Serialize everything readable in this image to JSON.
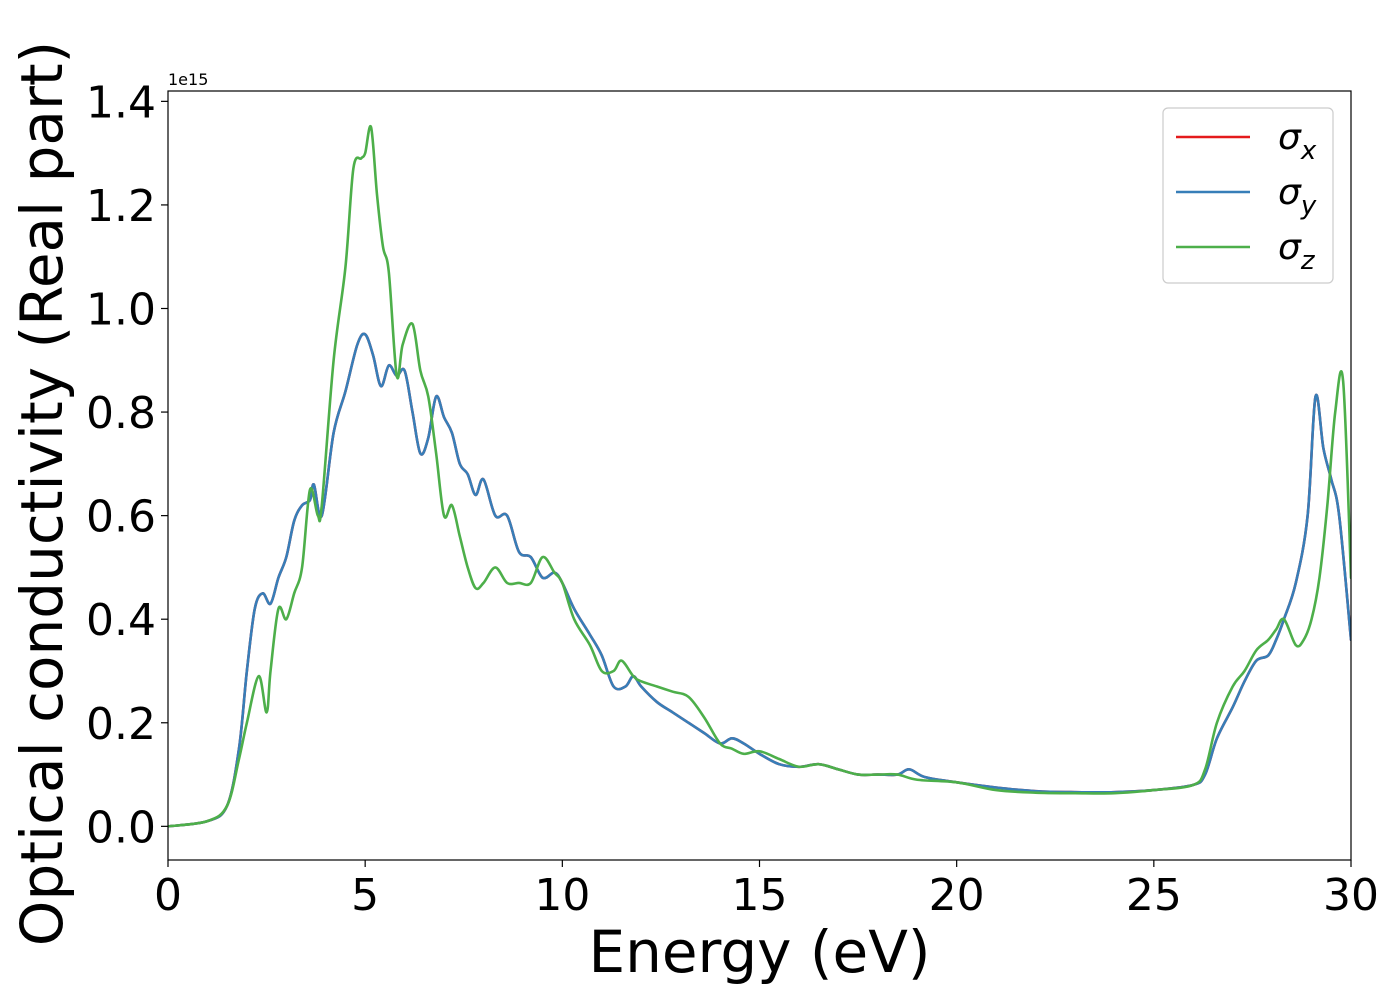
{
  "chart_data": {
    "type": "line",
    "xlabel": "Energy (eV)",
    "ylabel": "Optical conductivity (Real part)",
    "y_offset_text": "1e15",
    "xlim": [
      0,
      30
    ],
    "ylim": [
      -0.065,
      1.42
    ],
    "x_ticks": [
      0,
      5,
      10,
      15,
      20,
      25,
      30
    ],
    "x_tick_labels": [
      "0",
      "5",
      "10",
      "15",
      "20",
      "25",
      "30"
    ],
    "y_ticks": [
      0.0,
      0.2,
      0.4,
      0.6,
      0.8,
      1.0,
      1.2,
      1.4
    ],
    "y_tick_labels": [
      "0.0",
      "0.2",
      "0.4",
      "0.6",
      "0.8",
      "1.0",
      "1.2",
      "1.4"
    ],
    "grid": false,
    "legend_position": "top-right",
    "series": [
      {
        "name": "σx",
        "base": "σ",
        "sub": "x",
        "color": "#e41a1c",
        "x": [
          0,
          1,
          1.5,
          1.8,
          2.0,
          2.2,
          2.4,
          2.6,
          2.8,
          3.0,
          3.2,
          3.4,
          3.6,
          3.7,
          3.9,
          4.2,
          4.5,
          4.8,
          5.0,
          5.2,
          5.4,
          5.6,
          5.8,
          6.0,
          6.2,
          6.4,
          6.6,
          6.8,
          7.0,
          7.2,
          7.4,
          7.6,
          7.8,
          8.0,
          8.3,
          8.6,
          8.9,
          9.2,
          9.5,
          9.8,
          10.0,
          10.3,
          10.7,
          11.0,
          11.3,
          11.6,
          11.8,
          12.0,
          12.4,
          12.8,
          13.2,
          13.6,
          14.0,
          14.3,
          14.6,
          15.0,
          15.5,
          16.0,
          16.5,
          17.0,
          17.5,
          18.0,
          18.5,
          18.8,
          19.2,
          20.0,
          21.0,
          22.0,
          23.0,
          24.0,
          25.0,
          26.0,
          26.3,
          26.6,
          27.0,
          27.3,
          27.6,
          27.9,
          28.1,
          28.3,
          28.6,
          28.9,
          29.1,
          29.3,
          29.5,
          29.7,
          30.0
        ],
        "y": [
          0,
          0.01,
          0.04,
          0.15,
          0.3,
          0.42,
          0.45,
          0.43,
          0.48,
          0.52,
          0.59,
          0.62,
          0.63,
          0.66,
          0.6,
          0.76,
          0.84,
          0.93,
          0.95,
          0.91,
          0.85,
          0.89,
          0.87,
          0.88,
          0.8,
          0.72,
          0.75,
          0.83,
          0.79,
          0.76,
          0.7,
          0.68,
          0.64,
          0.67,
          0.6,
          0.6,
          0.53,
          0.52,
          0.48,
          0.49,
          0.47,
          0.42,
          0.37,
          0.33,
          0.27,
          0.27,
          0.29,
          0.27,
          0.24,
          0.22,
          0.2,
          0.18,
          0.16,
          0.17,
          0.16,
          0.14,
          0.12,
          0.115,
          0.12,
          0.11,
          0.1,
          0.1,
          0.1,
          0.11,
          0.095,
          0.085,
          0.075,
          0.068,
          0.066,
          0.066,
          0.07,
          0.08,
          0.1,
          0.17,
          0.23,
          0.28,
          0.32,
          0.33,
          0.36,
          0.4,
          0.47,
          0.6,
          0.83,
          0.73,
          0.67,
          0.6,
          0.36
        ]
      },
      {
        "name": "σy",
        "base": "σ",
        "sub": "y",
        "color": "#377eb8",
        "x": [
          0,
          1,
          1.5,
          1.8,
          2.0,
          2.2,
          2.4,
          2.6,
          2.8,
          3.0,
          3.2,
          3.4,
          3.6,
          3.7,
          3.9,
          4.2,
          4.5,
          4.8,
          5.0,
          5.2,
          5.4,
          5.6,
          5.8,
          6.0,
          6.2,
          6.4,
          6.6,
          6.8,
          7.0,
          7.2,
          7.4,
          7.6,
          7.8,
          8.0,
          8.3,
          8.6,
          8.9,
          9.2,
          9.5,
          9.8,
          10.0,
          10.3,
          10.7,
          11.0,
          11.3,
          11.6,
          11.8,
          12.0,
          12.4,
          12.8,
          13.2,
          13.6,
          14.0,
          14.3,
          14.6,
          15.0,
          15.5,
          16.0,
          16.5,
          17.0,
          17.5,
          18.0,
          18.5,
          18.8,
          19.2,
          20.0,
          21.0,
          22.0,
          23.0,
          24.0,
          25.0,
          26.0,
          26.3,
          26.6,
          27.0,
          27.3,
          27.6,
          27.9,
          28.1,
          28.3,
          28.6,
          28.9,
          29.1,
          29.3,
          29.5,
          29.7,
          30.0
        ],
        "y": [
          0,
          0.01,
          0.04,
          0.15,
          0.3,
          0.42,
          0.45,
          0.43,
          0.48,
          0.52,
          0.59,
          0.62,
          0.63,
          0.66,
          0.6,
          0.76,
          0.84,
          0.93,
          0.95,
          0.91,
          0.85,
          0.89,
          0.87,
          0.88,
          0.8,
          0.72,
          0.75,
          0.83,
          0.79,
          0.76,
          0.7,
          0.68,
          0.64,
          0.67,
          0.6,
          0.6,
          0.53,
          0.52,
          0.48,
          0.49,
          0.47,
          0.42,
          0.37,
          0.33,
          0.27,
          0.27,
          0.29,
          0.27,
          0.24,
          0.22,
          0.2,
          0.18,
          0.16,
          0.17,
          0.16,
          0.14,
          0.12,
          0.115,
          0.12,
          0.11,
          0.1,
          0.1,
          0.1,
          0.11,
          0.095,
          0.085,
          0.075,
          0.068,
          0.066,
          0.066,
          0.07,
          0.08,
          0.1,
          0.17,
          0.23,
          0.28,
          0.32,
          0.33,
          0.36,
          0.4,
          0.47,
          0.6,
          0.83,
          0.73,
          0.67,
          0.6,
          0.36
        ]
      },
      {
        "name": "σz",
        "base": "σ",
        "sub": "z",
        "color": "#4daf4a",
        "x": [
          0,
          1,
          1.5,
          1.8,
          2.0,
          2.3,
          2.5,
          2.6,
          2.8,
          3.0,
          3.2,
          3.4,
          3.6,
          3.8,
          3.9,
          4.2,
          4.5,
          4.7,
          4.9,
          5.0,
          5.15,
          5.3,
          5.45,
          5.6,
          5.8,
          5.95,
          6.2,
          6.4,
          6.6,
          6.8,
          7.0,
          7.2,
          7.4,
          7.6,
          7.8,
          8.0,
          8.3,
          8.6,
          8.9,
          9.2,
          9.5,
          9.8,
          10.0,
          10.3,
          10.7,
          11.0,
          11.3,
          11.5,
          11.8,
          12.0,
          12.4,
          12.8,
          13.2,
          13.6,
          14.0,
          14.3,
          14.6,
          15.0,
          15.5,
          16.0,
          16.5,
          17.0,
          17.5,
          18.0,
          18.5,
          19.0,
          20.0,
          21.0,
          22.0,
          23.0,
          24.0,
          25.0,
          26.0,
          26.3,
          26.6,
          27.0,
          27.3,
          27.6,
          27.9,
          28.1,
          28.3,
          28.6,
          28.8,
          29.0,
          29.2,
          29.4,
          29.6,
          29.8,
          30.0
        ],
        "y": [
          0,
          0.01,
          0.04,
          0.13,
          0.2,
          0.29,
          0.22,
          0.3,
          0.42,
          0.4,
          0.45,
          0.5,
          0.65,
          0.6,
          0.62,
          0.9,
          1.08,
          1.27,
          1.29,
          1.3,
          1.35,
          1.22,
          1.12,
          1.07,
          0.87,
          0.93,
          0.97,
          0.88,
          0.83,
          0.72,
          0.6,
          0.62,
          0.56,
          0.5,
          0.46,
          0.47,
          0.5,
          0.47,
          0.47,
          0.47,
          0.52,
          0.49,
          0.47,
          0.4,
          0.35,
          0.3,
          0.3,
          0.32,
          0.29,
          0.28,
          0.27,
          0.26,
          0.25,
          0.21,
          0.16,
          0.15,
          0.14,
          0.145,
          0.13,
          0.115,
          0.12,
          0.11,
          0.1,
          0.1,
          0.1,
          0.09,
          0.085,
          0.07,
          0.065,
          0.064,
          0.064,
          0.07,
          0.08,
          0.11,
          0.2,
          0.27,
          0.3,
          0.34,
          0.36,
          0.38,
          0.4,
          0.35,
          0.36,
          0.4,
          0.48,
          0.62,
          0.8,
          0.86,
          0.48
        ]
      }
    ]
  }
}
